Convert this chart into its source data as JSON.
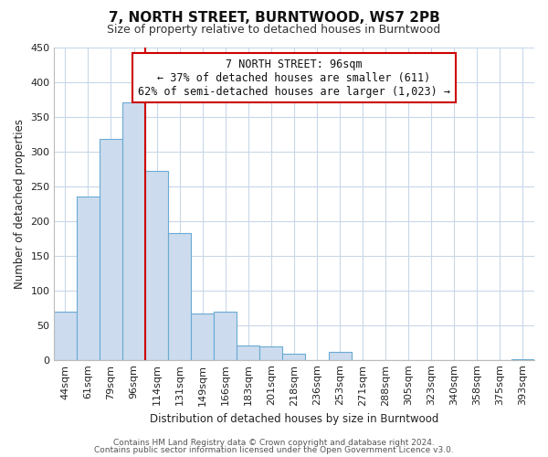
{
  "title": "7, NORTH STREET, BURNTWOOD, WS7 2PB",
  "subtitle": "Size of property relative to detached houses in Burntwood",
  "xlabel": "Distribution of detached houses by size in Burntwood",
  "ylabel": "Number of detached properties",
  "footer_line1": "Contains HM Land Registry data © Crown copyright and database right 2024.",
  "footer_line2": "Contains public sector information licensed under the Open Government Licence v3.0.",
  "bar_labels": [
    "44sqm",
    "61sqm",
    "79sqm",
    "96sqm",
    "114sqm",
    "131sqm",
    "149sqm",
    "166sqm",
    "183sqm",
    "201sqm",
    "218sqm",
    "236sqm",
    "253sqm",
    "271sqm",
    "288sqm",
    "305sqm",
    "323sqm",
    "340sqm",
    "358sqm",
    "375sqm",
    "393sqm"
  ],
  "bar_values": [
    70,
    235,
    318,
    370,
    272,
    183,
    68,
    70,
    22,
    20,
    10,
    0,
    12,
    0,
    0,
    0,
    0,
    0,
    0,
    0,
    2
  ],
  "bar_color": "#ccdcee",
  "bar_edge_color": "#6aaad4",
  "property_line_index": 3,
  "property_line_color": "#cc0000",
  "ylim": [
    0,
    450
  ],
  "yticks": [
    0,
    50,
    100,
    150,
    200,
    250,
    300,
    350,
    400,
    450
  ],
  "annotation_line1": "7 NORTH STREET: 96sqm",
  "annotation_line2": "← 37% of detached houses are smaller (611)",
  "annotation_line3": "62% of semi-detached houses are larger (1,023) →",
  "annotation_box_color": "#ffffff",
  "annotation_box_edge": "#cc0000",
  "bg_color": "#ffffff",
  "grid_color": "#c8d8e8",
  "title_fontsize": 11,
  "subtitle_fontsize": 9,
  "axis_label_fontsize": 8.5,
  "tick_fontsize": 8,
  "footer_fontsize": 6.5
}
